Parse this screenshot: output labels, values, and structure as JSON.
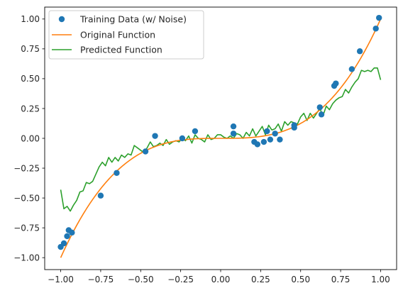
{
  "chart_data": {
    "type": "line",
    "title": "",
    "xlabel": "",
    "ylabel": "",
    "xlim": [
      -1.1,
      1.1
    ],
    "ylim": [
      -1.1,
      1.1
    ],
    "x_ticks": [
      -1.0,
      -0.75,
      -0.5,
      -0.25,
      0.0,
      0.25,
      0.5,
      0.75,
      1.0
    ],
    "x_tick_labels": [
      "−1.00",
      "−0.75",
      "−0.50",
      "−0.25",
      "0.00",
      "0.25",
      "0.50",
      "0.75",
      "1.00"
    ],
    "y_ticks": [
      1.0,
      0.75,
      0.5,
      0.25,
      0.0,
      -0.25,
      -0.5,
      -0.75,
      -1.0
    ],
    "y_tick_labels": [
      "1.00",
      "0.75",
      "0.50",
      "0.25",
      "0.00",
      "−0.25",
      "−0.50",
      "−0.75",
      "−1.00"
    ],
    "grid": false,
    "legend_position": "top-left",
    "series": [
      {
        "name": "Training Data (w/ Noise)",
        "kind": "scatter",
        "color": "#1f77b4",
        "points": [
          [
            -1.0,
            -0.91
          ],
          [
            -0.98,
            -0.88
          ],
          [
            -0.96,
            -0.82
          ],
          [
            -0.95,
            -0.77
          ],
          [
            -0.93,
            -0.79
          ],
          [
            -0.75,
            -0.48
          ],
          [
            -0.65,
            -0.29
          ],
          [
            -0.47,
            -0.11
          ],
          [
            -0.41,
            0.02
          ],
          [
            -0.24,
            0.0
          ],
          [
            -0.16,
            0.06
          ],
          [
            0.08,
            0.1
          ],
          [
            0.08,
            0.04
          ],
          [
            0.21,
            -0.03
          ],
          [
            0.23,
            -0.05
          ],
          [
            0.27,
            -0.03
          ],
          [
            0.29,
            0.06
          ],
          [
            0.31,
            -0.01
          ],
          [
            0.34,
            0.04
          ],
          [
            0.37,
            -0.01
          ],
          [
            0.46,
            0.11
          ],
          [
            0.46,
            0.09
          ],
          [
            0.62,
            0.26
          ],
          [
            0.63,
            0.2
          ],
          [
            0.71,
            0.44
          ],
          [
            0.72,
            0.46
          ],
          [
            0.82,
            0.58
          ],
          [
            0.87,
            0.73
          ],
          [
            0.97,
            0.92
          ],
          [
            0.99,
            1.01
          ]
        ]
      },
      {
        "name": "Original Function",
        "kind": "line",
        "color": "#ff7f0e",
        "function": "x^3",
        "samples": 100
      },
      {
        "name": "Predicted Function",
        "kind": "line",
        "color": "#2ca02c",
        "x": [
          -1.0,
          -0.98,
          -0.96,
          -0.94,
          -0.92,
          -0.9,
          -0.88,
          -0.86,
          -0.84,
          -0.82,
          -0.8,
          -0.78,
          -0.76,
          -0.74,
          -0.72,
          -0.7,
          -0.68,
          -0.66,
          -0.64,
          -0.62,
          -0.6,
          -0.58,
          -0.56,
          -0.54,
          -0.52,
          -0.5,
          -0.48,
          -0.46,
          -0.44,
          -0.42,
          -0.4,
          -0.38,
          -0.36,
          -0.34,
          -0.32,
          -0.3,
          -0.28,
          -0.26,
          -0.24,
          -0.22,
          -0.2,
          -0.18,
          -0.16,
          -0.14,
          -0.12,
          -0.1,
          -0.08,
          -0.06,
          -0.04,
          -0.02,
          0.0,
          0.02,
          0.04,
          0.06,
          0.08,
          0.1,
          0.12,
          0.14,
          0.16,
          0.18,
          0.2,
          0.22,
          0.24,
          0.26,
          0.28,
          0.3,
          0.32,
          0.34,
          0.36,
          0.38,
          0.4,
          0.42,
          0.44,
          0.46,
          0.48,
          0.5,
          0.52,
          0.54,
          0.56,
          0.58,
          0.6,
          0.62,
          0.64,
          0.66,
          0.68,
          0.7,
          0.72,
          0.74,
          0.76,
          0.78,
          0.8,
          0.82,
          0.84,
          0.86,
          0.88,
          0.9,
          0.92,
          0.94,
          0.96,
          0.98,
          1.0
        ],
        "y": [
          -0.43,
          -0.59,
          -0.57,
          -0.61,
          -0.56,
          -0.52,
          -0.45,
          -0.44,
          -0.37,
          -0.38,
          -0.36,
          -0.3,
          -0.24,
          -0.2,
          -0.23,
          -0.16,
          -0.2,
          -0.16,
          -0.19,
          -0.14,
          -0.16,
          -0.13,
          -0.14,
          -0.06,
          -0.08,
          -0.1,
          -0.12,
          -0.08,
          -0.03,
          -0.07,
          -0.06,
          -0.04,
          -0.06,
          -0.01,
          -0.05,
          -0.03,
          -0.02,
          -0.03,
          0.0,
          -0.02,
          0.02,
          -0.04,
          0.03,
          0.0,
          -0.01,
          -0.03,
          0.03,
          -0.01,
          0.0,
          0.03,
          0.03,
          0.01,
          0.0,
          0.02,
          0.0,
          0.04,
          0.03,
          0.0,
          0.05,
          0.02,
          0.08,
          0.02,
          0.06,
          0.1,
          0.03,
          0.11,
          0.07,
          0.08,
          0.12,
          0.06,
          0.14,
          0.11,
          0.14,
          0.13,
          0.12,
          0.18,
          0.21,
          0.15,
          0.21,
          0.17,
          0.21,
          0.25,
          0.19,
          0.27,
          0.24,
          0.29,
          0.32,
          0.34,
          0.35,
          0.41,
          0.38,
          0.43,
          0.47,
          0.5,
          0.57,
          0.56,
          0.57,
          0.56,
          0.59,
          0.59,
          0.49
        ]
      }
    ]
  }
}
